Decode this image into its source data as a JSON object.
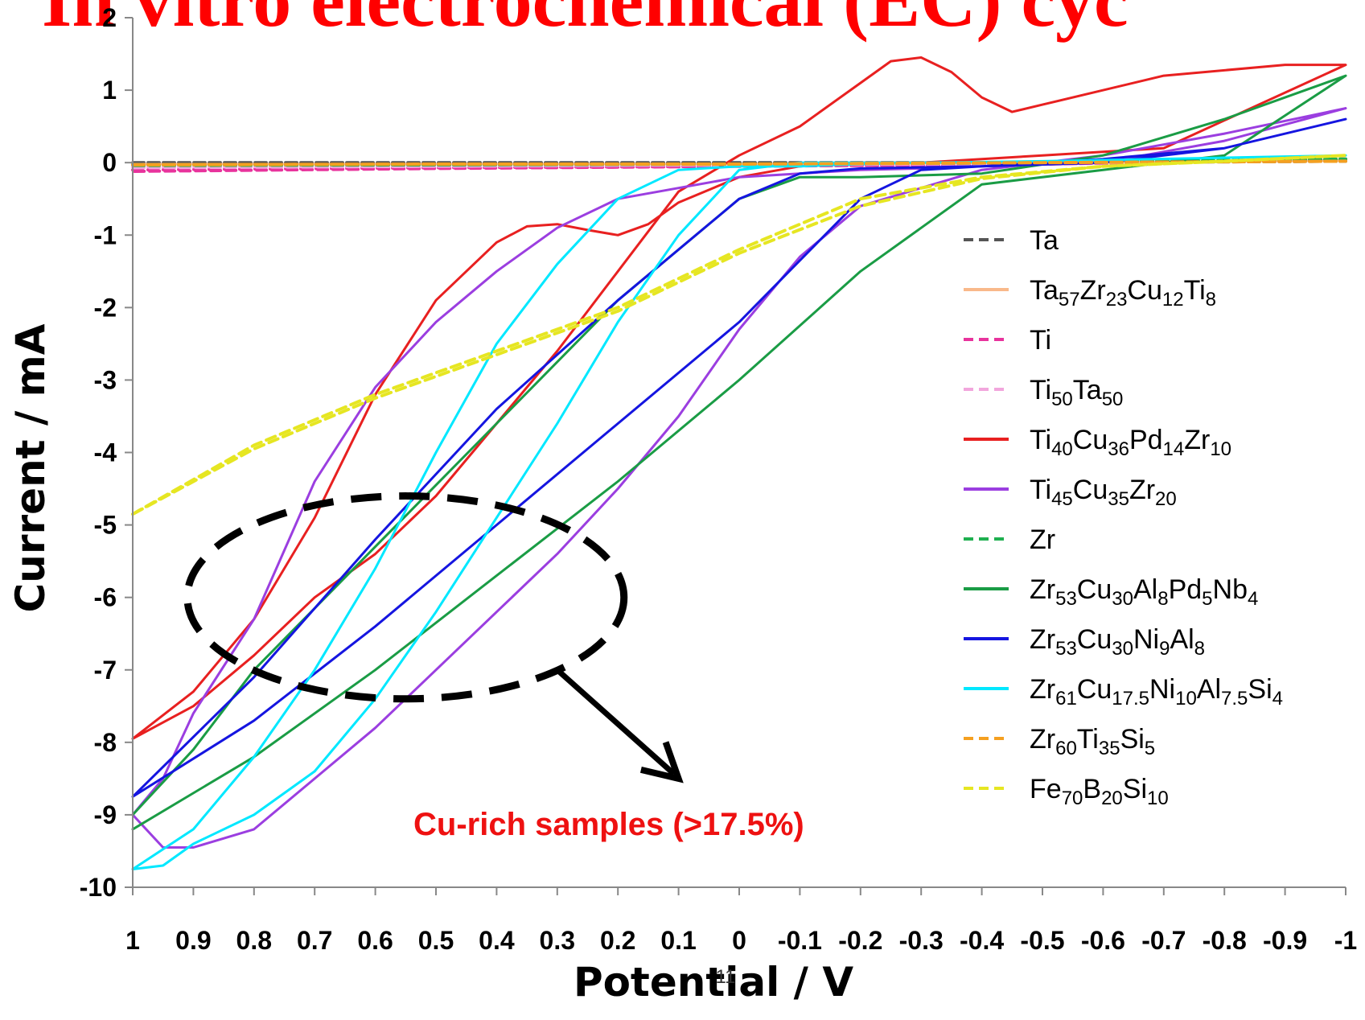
{
  "slide": {
    "title": "In vitro electrochemical (EC) cyc",
    "page_number": "11"
  },
  "chart_data": {
    "type": "line",
    "title": "",
    "xlabel": "Potential / V",
    "ylabel": "Current / mA",
    "xlim": [
      1,
      -1
    ],
    "ylim": [
      -10,
      2
    ],
    "x_reversed": true,
    "x_ticks": [
      "1",
      "0.9",
      "0.8",
      "0.7",
      "0.6",
      "0.5",
      "0.4",
      "0.3",
      "0.2",
      "0.1",
      "0",
      "-0.1",
      "-0.2",
      "-0.3",
      "-0.4",
      "-0.5",
      "-0.6",
      "-0.7",
      "-0.8",
      "-0.9",
      "-1"
    ],
    "y_ticks": [
      "2",
      "1",
      "0",
      "-1",
      "-2",
      "-3",
      "-4",
      "-5",
      "-6",
      "-7",
      "-8",
      "-9",
      "-10"
    ],
    "grid": false,
    "legend_position": "right",
    "series": [
      {
        "name": "Ta",
        "color": "#555555",
        "dash": "dashed",
        "x": [
          1,
          0.5,
          0,
          -0.5,
          -1,
          -0.5,
          0,
          0.5,
          1
        ],
        "y": [
          0.0,
          0.0,
          0.0,
          0.0,
          0.02,
          0.0,
          0.0,
          0.0,
          0.0
        ]
      },
      {
        "name": "Ta57Zr23Cu12Ti8",
        "parts": [
          [
            "Ta",
            ""
          ],
          [
            "57",
            "sub"
          ],
          [
            "Zr",
            ""
          ],
          [
            "23",
            "sub"
          ],
          [
            "Cu",
            ""
          ],
          [
            "12",
            "sub"
          ],
          [
            "Ti",
            ""
          ],
          [
            "8",
            "sub"
          ]
        ],
        "color": "#f9b98a",
        "dash": "solid",
        "x": [
          1,
          0.5,
          0,
          -0.5,
          -1,
          -0.5,
          0,
          0.5,
          1
        ],
        "y": [
          -0.02,
          -0.02,
          -0.02,
          0.0,
          0.03,
          0.0,
          -0.02,
          -0.02,
          -0.02
        ]
      },
      {
        "name": "Ti",
        "color": "#e8339c",
        "dash": "dashed",
        "x": [
          1,
          0.5,
          0,
          -0.5,
          -1,
          -0.5,
          0,
          0.5,
          1
        ],
        "y": [
          -0.1,
          -0.07,
          -0.05,
          -0.02,
          0.05,
          -0.02,
          -0.05,
          -0.08,
          -0.12
        ]
      },
      {
        "name": "Ti50Ta50",
        "parts": [
          [
            "Ti",
            ""
          ],
          [
            "50",
            "sub"
          ],
          [
            "Ta",
            ""
          ],
          [
            "50",
            "sub"
          ]
        ],
        "color": "#f2a6dd",
        "dash": "dashed",
        "x": [
          1,
          0.5,
          0,
          -0.5,
          -1,
          -0.5,
          0,
          0.5,
          1
        ],
        "y": [
          -0.06,
          -0.05,
          -0.03,
          -0.01,
          0.04,
          -0.01,
          -0.03,
          -0.05,
          -0.07
        ]
      },
      {
        "name": "Ti40Cu36Pd14Zr10",
        "parts": [
          [
            "Ti",
            ""
          ],
          [
            "40",
            "sub"
          ],
          [
            "Cu",
            ""
          ],
          [
            "36",
            "sub"
          ],
          [
            "Pd",
            ""
          ],
          [
            "14",
            "sub"
          ],
          [
            "Zr",
            ""
          ],
          [
            "10",
            "sub"
          ]
        ],
        "color": "#e82020",
        "dash": "solid",
        "x": [
          1,
          0.9,
          0.8,
          0.7,
          0.6,
          0.5,
          0.4,
          0.35,
          0.3,
          0.25,
          0.2,
          0.15,
          0.1,
          0,
          -0.1,
          -0.2,
          -0.3,
          -0.4,
          -0.5,
          -0.7,
          -1,
          -0.9,
          -0.7,
          -0.5,
          -0.45,
          -0.4,
          -0.35,
          -0.3,
          -0.25,
          -0.2,
          -0.1,
          0,
          0.1,
          0.2,
          0.3,
          0.4,
          0.5,
          0.6,
          0.7,
          0.8,
          0.9,
          1
        ],
        "y": [
          -7.95,
          -7.3,
          -6.3,
          -4.9,
          -3.2,
          -1.9,
          -1.1,
          -0.88,
          -0.85,
          -0.93,
          -1.0,
          -0.85,
          -0.55,
          -0.2,
          -0.05,
          0.0,
          0.0,
          0.05,
          0.1,
          0.2,
          1.35,
          1.35,
          1.2,
          0.8,
          0.7,
          0.9,
          1.25,
          1.45,
          1.4,
          1.1,
          0.5,
          0.1,
          -0.4,
          -1.5,
          -2.6,
          -3.6,
          -4.6,
          -5.4,
          -6.0,
          -6.8,
          -7.5,
          -7.95
        ]
      },
      {
        "name": "Ti45Cu35Zr20",
        "parts": [
          [
            "Ti",
            ""
          ],
          [
            "45",
            "sub"
          ],
          [
            "Cu",
            ""
          ],
          [
            "35",
            "sub"
          ],
          [
            "Zr",
            ""
          ],
          [
            "20",
            "sub"
          ]
        ],
        "color": "#9b3ee0",
        "dash": "solid",
        "x": [
          1,
          0.95,
          0.9,
          0.8,
          0.7,
          0.6,
          0.5,
          0.4,
          0.3,
          0.2,
          0.1,
          0,
          -0.1,
          -0.2,
          -0.4,
          -0.6,
          -0.8,
          -1,
          -0.8,
          -0.6,
          -0.4,
          -0.3,
          -0.2,
          -0.1,
          0,
          0.1,
          0.2,
          0.3,
          0.4,
          0.5,
          0.6,
          0.7,
          0.8,
          0.9,
          0.95,
          1
        ],
        "y": [
          -9.0,
          -9.45,
          -9.45,
          -9.2,
          -8.5,
          -7.8,
          -7.0,
          -6.2,
          -5.4,
          -4.5,
          -3.5,
          -2.3,
          -1.3,
          -0.6,
          -0.1,
          0.1,
          0.4,
          0.75,
          0.3,
          0.0,
          -0.05,
          -0.08,
          -0.1,
          -0.15,
          -0.2,
          -0.35,
          -0.5,
          -0.9,
          -1.5,
          -2.2,
          -3.1,
          -4.4,
          -6.3,
          -7.6,
          -8.5,
          -9.0
        ]
      },
      {
        "name": "Zr",
        "color": "#1fb050",
        "dash": "dashed",
        "x": [
          1,
          0.5,
          0,
          -0.5,
          -1,
          -0.5,
          0,
          0.5,
          1
        ],
        "y": [
          -0.03,
          -0.03,
          -0.02,
          0.0,
          0.05,
          0.0,
          -0.02,
          -0.03,
          -0.04
        ]
      },
      {
        "name": "Zr53Cu30Al8Pd5Nb4",
        "parts": [
          [
            "Zr",
            ""
          ],
          [
            "53",
            "sub"
          ],
          [
            "Cu",
            ""
          ],
          [
            "30",
            "sub"
          ],
          [
            "Al",
            ""
          ],
          [
            "8",
            "sub"
          ],
          [
            "Pd",
            ""
          ],
          [
            "5",
            "sub"
          ],
          [
            "Nb",
            ""
          ],
          [
            "4",
            "sub"
          ]
        ],
        "color": "#1a9c45",
        "dash": "solid",
        "x": [
          1,
          0.8,
          0.6,
          0.4,
          0.2,
          0,
          -0.2,
          -0.4,
          -0.6,
          -0.8,
          -1,
          -0.8,
          -0.6,
          -0.4,
          -0.2,
          -0.1,
          0,
          0.2,
          0.4,
          0.6,
          0.8,
          0.9,
          1
        ],
        "y": [
          -9.2,
          -8.2,
          -7.0,
          -5.7,
          -4.4,
          -3.0,
          -1.5,
          -0.3,
          -0.1,
          0.1,
          1.2,
          0.6,
          0.1,
          -0.15,
          -0.2,
          -0.2,
          -0.5,
          -1.9,
          -3.6,
          -5.3,
          -7.0,
          -8.1,
          -9.0
        ]
      },
      {
        "name": "Zr53Cu30Ni9Al8",
        "parts": [
          [
            "Zr",
            ""
          ],
          [
            "53",
            "sub"
          ],
          [
            "Cu",
            ""
          ],
          [
            "30",
            "sub"
          ],
          [
            "Ni",
            ""
          ],
          [
            "9",
            "sub"
          ],
          [
            "Al",
            ""
          ],
          [
            "8",
            "sub"
          ]
        ],
        "color": "#1515e0",
        "dash": "solid",
        "x": [
          1,
          0.8,
          0.6,
          0.4,
          0.2,
          0,
          -0.2,
          -0.3,
          -0.4,
          -0.6,
          -0.8,
          -1,
          -0.8,
          -0.6,
          -0.4,
          -0.2,
          -0.1,
          0,
          0.2,
          0.4,
          0.6,
          0.8,
          1
        ],
        "y": [
          -8.75,
          -7.7,
          -6.4,
          -5.0,
          -3.6,
          -2.2,
          -0.5,
          -0.1,
          -0.05,
          0.05,
          0.2,
          0.6,
          0.2,
          0.0,
          -0.05,
          -0.08,
          -0.15,
          -0.5,
          -1.9,
          -3.4,
          -5.2,
          -7.1,
          -8.75
        ]
      },
      {
        "name": "Zr61Cu17.5Ni10Al7.5Si4",
        "parts": [
          [
            "Zr",
            ""
          ],
          [
            "61",
            "sub"
          ],
          [
            "Cu",
            ""
          ],
          [
            "17.5",
            "sub"
          ],
          [
            "Ni",
            ""
          ],
          [
            "10",
            "sub"
          ],
          [
            "Al",
            ""
          ],
          [
            "7.5",
            "sub"
          ],
          [
            "Si",
            ""
          ],
          [
            "4",
            "sub"
          ]
        ],
        "color": "#00e8ff",
        "dash": "solid",
        "x": [
          1,
          0.95,
          0.9,
          0.8,
          0.7,
          0.6,
          0.5,
          0.4,
          0.3,
          0.2,
          0.1,
          0,
          -0.1,
          -0.2,
          -0.3,
          -0.5,
          -1,
          -0.5,
          -0.3,
          -0.2,
          -0.1,
          0,
          0.1,
          0.2,
          0.3,
          0.4,
          0.5,
          0.6,
          0.7,
          0.8,
          0.9,
          1
        ],
        "y": [
          -9.75,
          -9.7,
          -9.4,
          -9.0,
          -8.4,
          -7.4,
          -6.2,
          -4.9,
          -3.6,
          -2.2,
          -1.0,
          -0.1,
          0.0,
          0.0,
          0.0,
          0.02,
          0.1,
          0.02,
          0.0,
          -0.02,
          -0.05,
          -0.05,
          -0.1,
          -0.5,
          -1.4,
          -2.5,
          -4.0,
          -5.6,
          -7.0,
          -8.2,
          -9.2,
          -9.75
        ]
      },
      {
        "name": "Zr60Ti35Si5",
        "parts": [
          [
            "Zr",
            ""
          ],
          [
            "60",
            "sub"
          ],
          [
            "Ti",
            ""
          ],
          [
            "35",
            "sub"
          ],
          [
            "Si",
            ""
          ],
          [
            "5",
            "sub"
          ]
        ],
        "color": "#f5a020",
        "dash": "dashed",
        "x": [
          1,
          0.5,
          0,
          -0.5,
          -1,
          -0.5,
          0,
          0.5,
          1
        ],
        "y": [
          -0.03,
          -0.02,
          -0.02,
          0.0,
          0.02,
          0.0,
          -0.02,
          -0.02,
          -0.03
        ]
      },
      {
        "name": "Fe70B20Si10",
        "parts": [
          [
            "Fe",
            ""
          ],
          [
            "70",
            "sub"
          ],
          [
            "B",
            ""
          ],
          [
            "20",
            "sub"
          ],
          [
            "Si",
            ""
          ],
          [
            "10",
            "sub"
          ]
        ],
        "color": "#e6e622",
        "dash": "dashed",
        "x": [
          1,
          0.8,
          0.6,
          0.4,
          0.2,
          0,
          -0.2,
          -0.4,
          -0.6,
          -0.8,
          -1,
          -0.8,
          -0.6,
          -0.4,
          -0.2,
          0,
          0.2,
          0.4,
          0.6,
          0.8,
          1
        ],
        "y": [
          -4.85,
          -3.9,
          -3.2,
          -2.6,
          -2.0,
          -1.2,
          -0.5,
          -0.2,
          -0.05,
          0.02,
          0.1,
          0.02,
          -0.05,
          -0.22,
          -0.6,
          -1.25,
          -2.05,
          -2.65,
          -3.25,
          -3.95,
          -4.85
        ]
      }
    ],
    "annotations": [
      {
        "text": "Cu-rich samples (>17.5%)",
        "type": "label"
      },
      {
        "type": "dashed-ellipse",
        "cx": 0.55,
        "cy": -6.0,
        "rx": 0.36,
        "ry": 1.4
      },
      {
        "type": "arrow",
        "from": [
          0.3,
          -7.0
        ],
        "to": [
          0.1,
          -8.5
        ]
      }
    ]
  }
}
